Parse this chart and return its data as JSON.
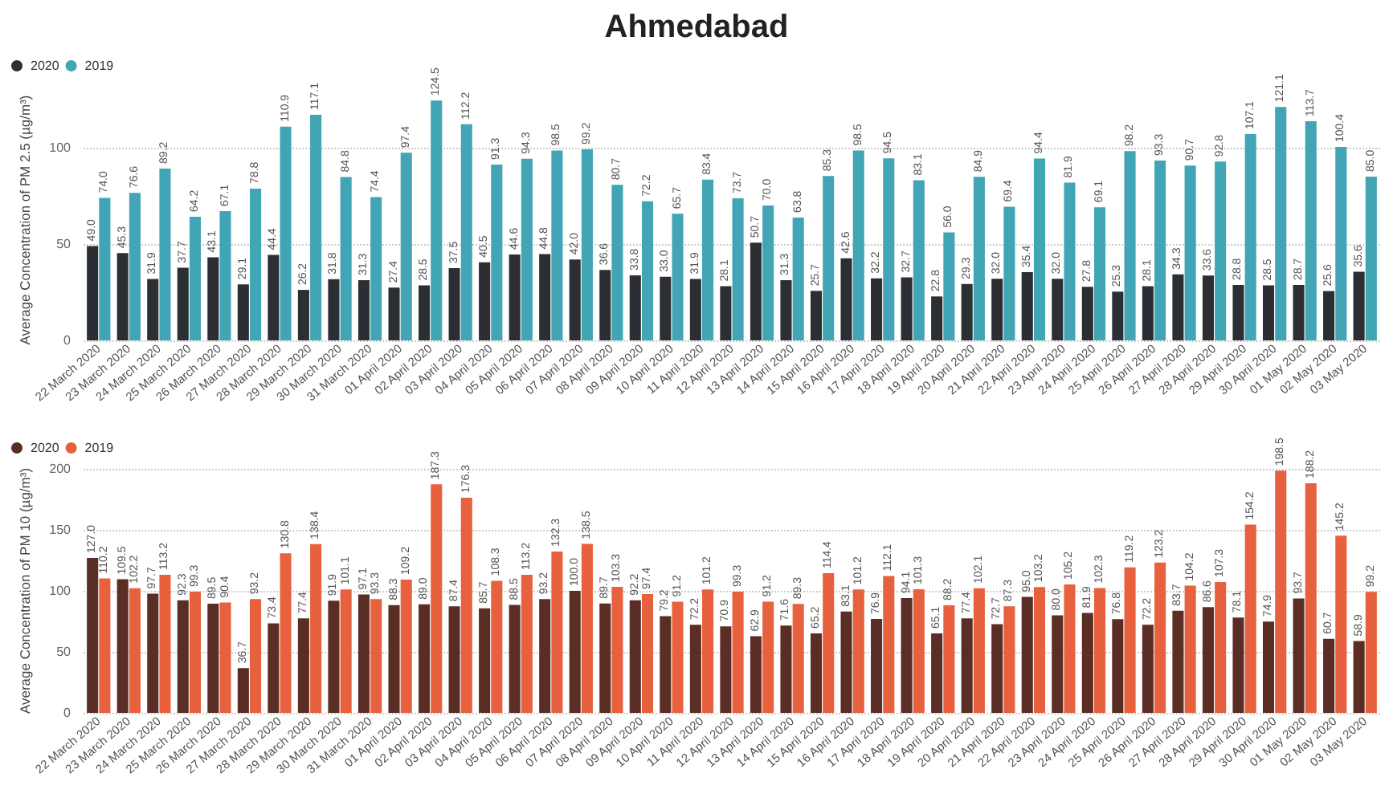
{
  "chart_data": [
    {
      "type": "bar",
      "title": "Ahmedabad",
      "ylabel": "Average Concentration of PM 2.5 (µg/m³)",
      "categories": [
        "22 March 2020",
        "23 March 2020",
        "24 March 2020",
        "25 March 2020",
        "26 March 2020",
        "27 March 2020",
        "28 March 2020",
        "29 March 2020",
        "30 March 2020",
        "31 March 2020",
        "01 April 2020",
        "02 April 2020",
        "03 April 2020",
        "04 April 2020",
        "05 April 2020",
        "06 April 2020",
        "07 April 2020",
        "08 April 2020",
        "09 April 2020",
        "10 April 2020",
        "11 April 2020",
        "12 April 2020",
        "13 April 2020",
        "14 April 2020",
        "15 April 2020",
        "16 April 2020",
        "17 April 2020",
        "18 April 2020",
        "19 April 2020",
        "20 April 2020",
        "21 April 2020",
        "22 April 2020",
        "23 April 2020",
        "24 April 2020",
        "25 April 2020",
        "26 April 2020",
        "27 April 2020",
        "28 April 2020",
        "29 April 2020",
        "30 April 2020",
        "01 May 2020",
        "02 May 2020",
        "03 May 2020"
      ],
      "series": [
        {
          "name": "2020",
          "color": "#2b2f33",
          "values": [
            49.0,
            45.3,
            31.9,
            37.7,
            43.1,
            29.1,
            44.4,
            26.2,
            31.8,
            31.3,
            27.4,
            28.5,
            37.5,
            40.5,
            44.6,
            44.8,
            42.0,
            36.6,
            33.8,
            33.0,
            31.9,
            28.1,
            50.7,
            31.3,
            25.7,
            42.6,
            32.2,
            32.7,
            22.8,
            29.3,
            32.0,
            35.4,
            32.0,
            27.8,
            25.3,
            28.1,
            34.3,
            33.6,
            28.8,
            28.5,
            28.7,
            25.6,
            35.6
          ],
          "value_labels": [
            "49.0",
            "45.3",
            "31.9",
            "37.7",
            "43.1",
            "29.1",
            "44.4",
            "26.2",
            "31.8",
            "31.3",
            "27.4",
            "28.5",
            "37.5",
            "40.5",
            "44.6",
            "44.8",
            "42.0",
            "36.6",
            "33.8",
            "33.0",
            "31.9",
            "28.1",
            "50.7",
            "31.3",
            "25.7",
            "42.6",
            "32.2",
            "32.7",
            "22.8",
            "29.3",
            "32.0",
            "35.4",
            "32.0",
            "27.8",
            "25.3",
            "28.1",
            "34.3",
            "33.6",
            "28.8",
            "28.5",
            "28.7",
            "25.6",
            "35.6"
          ]
        },
        {
          "name": "2019",
          "color": "#41a5b5",
          "values": [
            74.0,
            76.6,
            89.2,
            64.2,
            67.1,
            78.8,
            110.9,
            117.1,
            84.8,
            74.4,
            97.4,
            124.5,
            112.2,
            91.3,
            94.3,
            98.5,
            99.2,
            80.7,
            72.2,
            65.7,
            83.4,
            73.7,
            70.0,
            63.8,
            85.3,
            98.5,
            94.5,
            83.1,
            56.0,
            84.9,
            69.4,
            94.4,
            81.9,
            69.1,
            98.2,
            93.3,
            90.7,
            92.8,
            107.1,
            121.1,
            113.7,
            100.4,
            85.0
          ],
          "value_labels": [
            "74.0",
            "76.6",
            "89.2",
            "64.2",
            "67.1",
            "78.8",
            "110.9",
            "117.1",
            "84.8",
            "74.4",
            "97.4",
            "124.5",
            "112.2",
            "91.3",
            "94.3",
            "98.5",
            "99.2",
            "80.7",
            "72.2",
            "65.7",
            "83.4",
            "73.7",
            "70.0",
            "63.8",
            "85.3",
            "98.5",
            "94.5",
            "83.1",
            "56.0",
            "84.9",
            "69.4",
            "94.4",
            "81.9",
            "69.1",
            "98.2",
            "93.3",
            "90.7",
            "92.8",
            "107.1",
            "121.1",
            "113.7",
            "100.4",
            "85.0"
          ]
        }
      ],
      "ylim": [
        0,
        125
      ],
      "yticks": [
        0,
        50,
        100
      ],
      "grid": "y",
      "legend": "top left"
    },
    {
      "type": "bar",
      "ylabel": "Average Concentration of PM 10 (µg/m³)",
      "categories": [
        "22 March 2020",
        "23 March 2020",
        "24 March 2020",
        "25 March 2020",
        "26 March 2020",
        "27 March 2020",
        "28 March 2020",
        "29 March 2020",
        "30 March 2020",
        "31 March 2020",
        "01 April 2020",
        "02 April 2020",
        "03 April 2020",
        "04 April 2020",
        "05 April 2020",
        "06 April 2020",
        "07 April 2020",
        "08 April 2020",
        "09 April 2020",
        "10 April 2020",
        "11 April 2020",
        "12 April 2020",
        "13 April 2020",
        "14 April 2020",
        "15 April 2020",
        "16 April 2020",
        "17 April 2020",
        "18 April 2020",
        "19 April 2020",
        "20 April 2020",
        "21 April 2020",
        "22 April 2020",
        "23 April 2020",
        "24 April 2020",
        "25 April 2020",
        "26 April 2020",
        "27 April 2020",
        "28 April 2020",
        "29 April 2020",
        "30 April 2020",
        "01 May 2020",
        "02 May 2020",
        "03 May 2020"
      ],
      "series": [
        {
          "name": "2020",
          "color": "#5a2e25",
          "values": [
            127.0,
            109.5,
            97.7,
            92.3,
            89.5,
            36.7,
            73.4,
            77.4,
            91.9,
            97.1,
            88.3,
            89.0,
            87.4,
            85.7,
            88.5,
            93.2,
            100.0,
            89.7,
            92.2,
            79.2,
            72.2,
            70.9,
            62.9,
            71.6,
            65.2,
            83.1,
            76.9,
            94.1,
            65.1,
            77.4,
            72.7,
            95.0,
            80.0,
            81.9,
            76.8,
            72.2,
            83.7,
            86.6,
            78.1,
            74.9,
            93.7,
            60.7,
            58.9
          ],
          "value_labels": [
            "127.0",
            "109.5",
            "97.7",
            "92.3",
            "89.5",
            "36.7",
            "73.4",
            "77.4",
            "91.9",
            "97.1",
            "88.3",
            "89.0",
            "87.4",
            "85.7",
            "88.5",
            "93.2",
            "100.0",
            "89.7",
            "92.2",
            "79.2",
            "72.2",
            "70.9",
            "62.9",
            "71.6",
            "65.2",
            "83.1",
            "76.9",
            "94.1",
            "65.1",
            "77.4",
            "72.7",
            "95.0",
            "80.0",
            "81.9",
            "76.8",
            "72.2",
            "83.7",
            "86.6",
            "78.1",
            "74.9",
            "93.7",
            "60.7",
            "58.9"
          ]
        },
        {
          "name": "2019",
          "color": "#e8613f",
          "values": [
            110.2,
            102.2,
            113.2,
            99.3,
            90.4,
            93.2,
            130.8,
            138.4,
            101.1,
            93.3,
            109.2,
            187.3,
            176.3,
            108.3,
            113.2,
            132.3,
            138.5,
            103.3,
            97.4,
            91.2,
            101.2,
            99.3,
            91.2,
            89.3,
            114.4,
            101.2,
            112.1,
            101.3,
            88.2,
            102.1,
            87.3,
            103.2,
            105.2,
            102.3,
            119.2,
            123.2,
            104.2,
            107.3,
            154.2,
            198.5,
            188.2,
            145.2,
            99.2
          ],
          "value_labels": [
            "110.2",
            "102.2",
            "113.2",
            "99.3",
            "90.4",
            "93.2",
            "130.8",
            "138.4",
            "101.1",
            "93.3",
            "109.2",
            "187.3",
            "176.3",
            "108.3",
            "113.2",
            "132.3",
            "138.5",
            "103.3",
            "97.4",
            "91.2",
            "101.2",
            "99.3",
            "91.2",
            "89.3",
            "114.4",
            "101.2",
            "112.1",
            "101.3",
            "88.2",
            "102.1",
            "87.3",
            "103.2",
            "105.2",
            "102.3",
            "119.2",
            "123.2",
            "104.2",
            "107.3",
            "154.2",
            "198.5",
            "188.2",
            "145.2",
            "99.2"
          ]
        }
      ],
      "ylim": [
        0,
        200
      ],
      "yticks": [
        0,
        50,
        100,
        150,
        200
      ],
      "grid": "y",
      "legend": "top left"
    }
  ]
}
